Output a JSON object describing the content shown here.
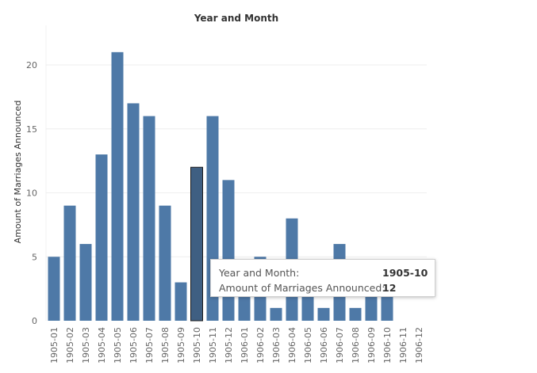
{
  "chart_data": {
    "type": "bar",
    "title": "Year and Month",
    "ylabel": "Amount of Marriages Announced",
    "xlabel": "",
    "ylim": [
      0,
      22.5
    ],
    "yticks": [
      0,
      5,
      10,
      15,
      20
    ],
    "grid": true,
    "categories": [
      "1905-01",
      "1905-02",
      "1905-03",
      "1905-04",
      "1905-05",
      "1905-06",
      "1905-07",
      "1905-08",
      "1905-09",
      "1905-10",
      "1905-11",
      "1905-12",
      "1906-01",
      "1906-02",
      "1906-03",
      "1906-04",
      "1906-05",
      "1906-06",
      "1906-07",
      "1906-08",
      "1906-09",
      "1906-10",
      "1906-11",
      "1906-12"
    ],
    "values": [
      5,
      9,
      6,
      13,
      21,
      17,
      16,
      9,
      3,
      12,
      16,
      11,
      3,
      5,
      1,
      8,
      3,
      1,
      6,
      1,
      3,
      3,
      null,
      null
    ],
    "highlighted_index": 9,
    "bar_color": "#4e79a7",
    "highlight_color": "#3f5f82"
  },
  "tooltip": {
    "rows": [
      {
        "key": "Year and Month:",
        "value": "1905-10"
      },
      {
        "key": "Amount of Marriages Announced:",
        "value": "12"
      }
    ]
  }
}
